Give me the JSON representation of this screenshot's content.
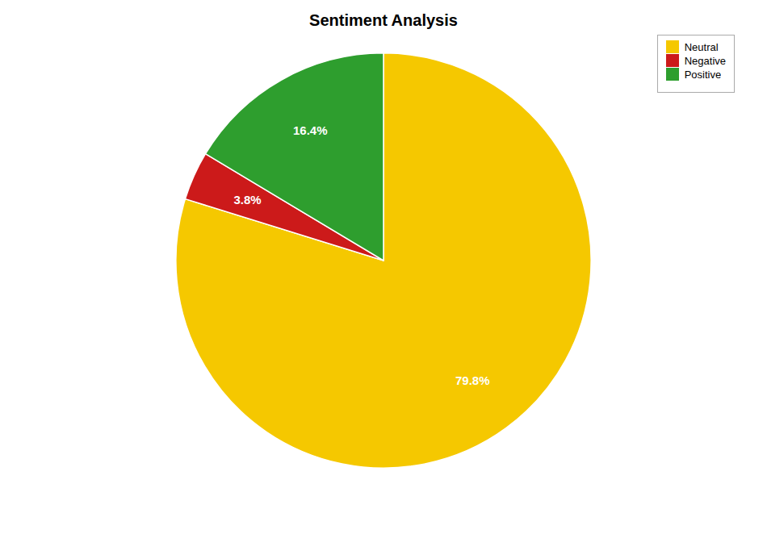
{
  "chart_data": {
    "type": "pie",
    "title": "Sentiment Analysis",
    "categories": [
      "Neutral",
      "Negative",
      "Positive"
    ],
    "values": [
      79.8,
      3.8,
      16.4
    ],
    "value_labels": [
      "79.8%",
      "3.8%",
      "16.4%"
    ],
    "colors": [
      "#f5c800",
      "#cc1a1a",
      "#2e9e2e"
    ],
    "data_labels": true,
    "legend": "upper right"
  }
}
